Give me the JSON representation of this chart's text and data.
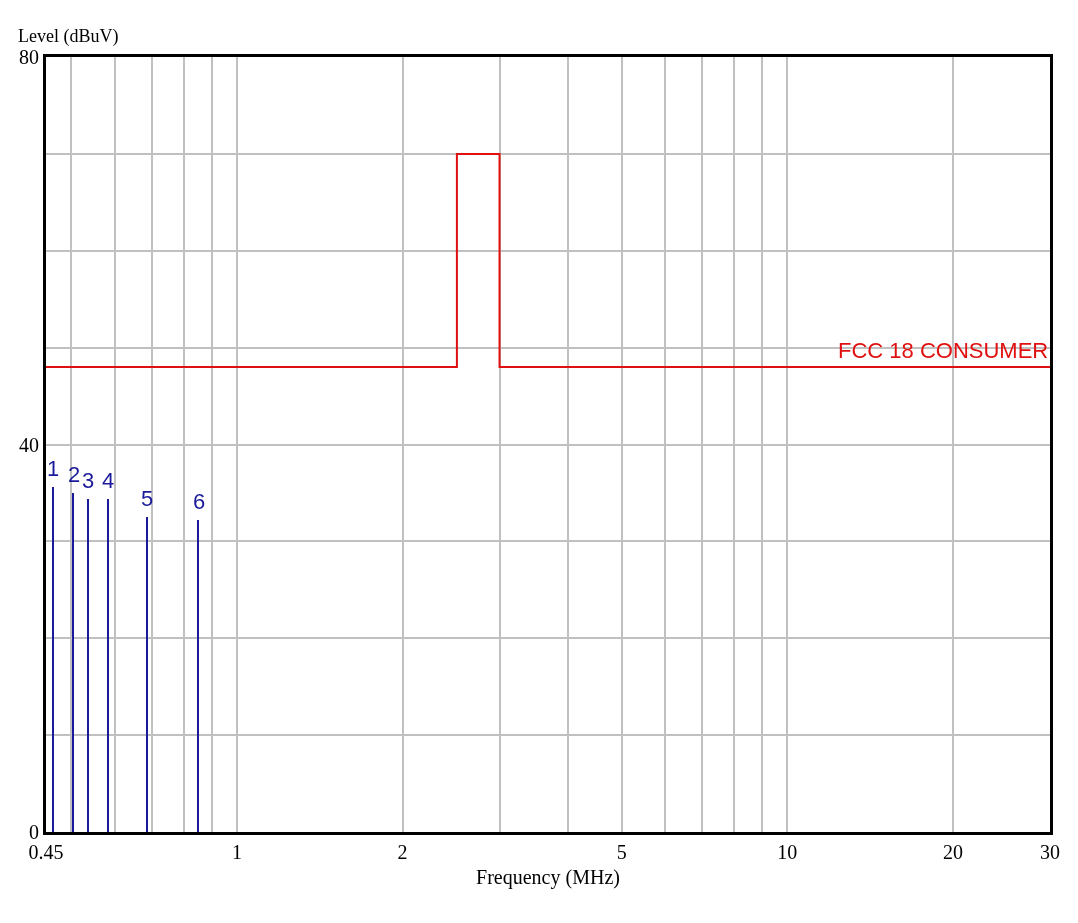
{
  "chart_data": {
    "type": "bar",
    "xlabel": "Frequency (MHz)",
    "ylabel": "Level (dBuV)",
    "x": [
      0.463,
      0.505,
      0.536,
      0.583,
      0.688,
      0.852
    ],
    "series": [
      {
        "color": "#1a1a9a",
        "values": [
          35.6,
          35.0,
          34.4,
          34.4,
          32.5,
          32.2
        ]
      },
      {
        "type": "step",
        "name": "FCC 18 CONSUMER",
        "color": "#e01010",
        "x": [
          0.45,
          2.51,
          3.0,
          30
        ],
        "values": [
          48,
          70,
          48,
          48
        ]
      }
    ],
    "annotations": [
      {
        "text": "1",
        "x": 0.463,
        "y": 35.6
      },
      {
        "text": "2",
        "x": 0.505,
        "y": 35.0
      },
      {
        "text": "3",
        "x": 0.536,
        "y": 34.4
      },
      {
        "text": "4",
        "x": 0.583,
        "y": 34.4
      },
      {
        "text": "5",
        "x": 0.688,
        "y": 32.5
      },
      {
        "text": "6",
        "x": 0.852,
        "y": 32.2
      }
    ],
    "log": "x",
    "xlim": [
      0.45,
      30
    ],
    "ylim": [
      0,
      80
    ],
    "xticks": [
      0.45,
      {
        "value": 0.5,
        "label": null
      },
      {
        "value": 0.6,
        "label": null
      },
      {
        "value": 0.7,
        "label": null
      },
      {
        "value": 0.8,
        "label": null
      },
      {
        "value": 0.9,
        "label": null
      },
      1,
      2,
      {
        "value": 3,
        "label": null
      },
      {
        "value": 4,
        "label": null
      },
      5,
      {
        "value": 6,
        "label": null
      },
      {
        "value": 7,
        "label": null
      },
      {
        "value": 8,
        "label": null
      },
      {
        "value": 9,
        "label": null
      },
      10,
      20,
      30
    ],
    "yticks": [
      0,
      {
        "value": 10,
        "label": null
      },
      {
        "value": 20,
        "label": null
      },
      {
        "value": 30,
        "label": null
      },
      40,
      {
        "value": 50,
        "label": null
      },
      {
        "value": 60,
        "label": null
      },
      {
        "value": 70,
        "label": null
      },
      80
    ],
    "grid": true,
    "legend": false
  }
}
